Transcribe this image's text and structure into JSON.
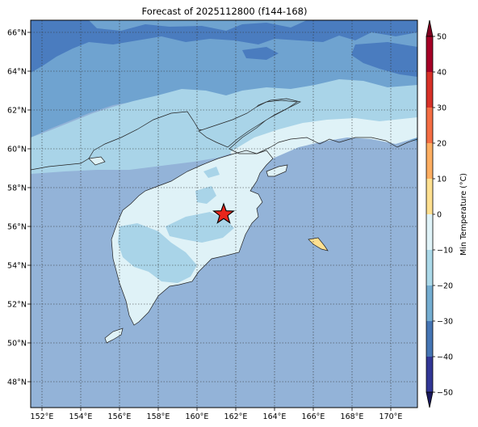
{
  "title": "Forecast of 2025112800 (f144-168)",
  "map": {
    "lat_ticks": [
      "66°N",
      "64°N",
      "62°N",
      "60°N",
      "58°N",
      "56°N",
      "54°N",
      "52°N",
      "50°N",
      "48°N"
    ],
    "lon_ticks": [
      "152°E",
      "154°E",
      "156°E",
      "158°E",
      "160°E",
      "162°E",
      "164°E",
      "166°E",
      "168°E",
      "170°E"
    ],
    "marker": {
      "label": "star",
      "lon": 161.4,
      "lat": 56.7,
      "color": "#e8261c"
    }
  },
  "colorbar": {
    "label": "Min Temperature (°C)",
    "ticks": [
      "50",
      "40",
      "30",
      "20",
      "10",
      "0",
      "−10",
      "−20",
      "−30",
      "−40",
      "−50"
    ],
    "colors": [
      "#a50026",
      "#d73027",
      "#f46d43",
      "#fdae61",
      "#fee090",
      "#e0f3f8",
      "#abd9e9",
      "#74add1",
      "#4575b4",
      "#313695"
    ]
  }
}
